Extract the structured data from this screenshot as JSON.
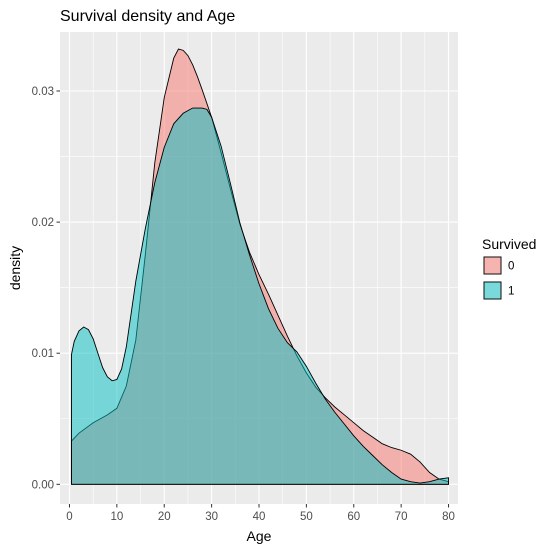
{
  "chart_data": {
    "type": "area",
    "title": "Survival density and Age",
    "xlabel": "Age",
    "ylabel": "density",
    "xlim": [
      -2,
      82
    ],
    "ylim": [
      -0.0015,
      0.0345
    ],
    "x_ticks": [
      0,
      10,
      20,
      30,
      40,
      50,
      60,
      70,
      80
    ],
    "y_ticks": [
      0.0,
      0.01,
      0.02,
      0.03
    ],
    "y_tick_labels": [
      "0.00",
      "0.01",
      "0.02",
      "0.03"
    ],
    "grid": true,
    "legend": {
      "title": "Survived",
      "placement": "right"
    },
    "series": [
      {
        "name": "0",
        "color": "#F8766D",
        "x": [
          0.42,
          2,
          5,
          8,
          10,
          12,
          14,
          16,
          18,
          20,
          22,
          23,
          24,
          25,
          26,
          27,
          28,
          30,
          32,
          34,
          36,
          38,
          40,
          42,
          44,
          46,
          48,
          50,
          52,
          54,
          56,
          58,
          60,
          62,
          64,
          66,
          68,
          70,
          72,
          74,
          76,
          78,
          80
        ],
        "y": [
          0.0033,
          0.0039,
          0.0047,
          0.0053,
          0.0058,
          0.0075,
          0.011,
          0.0175,
          0.0245,
          0.0295,
          0.0325,
          0.0332,
          0.0331,
          0.0327,
          0.032,
          0.0311,
          0.0301,
          0.028,
          0.0253,
          0.0225,
          0.0198,
          0.0177,
          0.016,
          0.0145,
          0.0129,
          0.0113,
          0.0098,
          0.0085,
          0.0074,
          0.0066,
          0.0059,
          0.0053,
          0.0047,
          0.0041,
          0.0036,
          0.0031,
          0.0028,
          0.0026,
          0.0023,
          0.0017,
          0.0009,
          0.0004,
          0.0002
        ]
      },
      {
        "name": "1",
        "color": "#00BFC4",
        "x": [
          0.42,
          1,
          2,
          3,
          4,
          5,
          6,
          7,
          8,
          9,
          10,
          11,
          12,
          13,
          14,
          16,
          18,
          20,
          22,
          24,
          26,
          28,
          29,
          30,
          32,
          34,
          36,
          38,
          40,
          42,
          44,
          46,
          48,
          50,
          52,
          54,
          56,
          58,
          60,
          62,
          64,
          66,
          68,
          70,
          72,
          74,
          76,
          78,
          80
        ],
        "y": [
          0.0099,
          0.0109,
          0.0117,
          0.012,
          0.0118,
          0.0111,
          0.01,
          0.0089,
          0.0082,
          0.0079,
          0.008,
          0.0088,
          0.0105,
          0.013,
          0.0155,
          0.0195,
          0.023,
          0.0257,
          0.0275,
          0.0283,
          0.0287,
          0.0287,
          0.0286,
          0.028,
          0.0258,
          0.0229,
          0.0199,
          0.0175,
          0.0153,
          0.0134,
          0.0119,
          0.0108,
          0.0101,
          0.009,
          0.0077,
          0.0065,
          0.0055,
          0.0046,
          0.0037,
          0.0029,
          0.0022,
          0.0015,
          0.0009,
          0.0004,
          0.0002,
          0.0001,
          0.0002,
          0.0004,
          0.0005
        ]
      }
    ]
  }
}
